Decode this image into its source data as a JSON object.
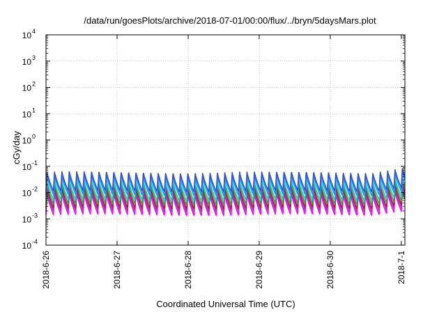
{
  "chart_data": {
    "type": "line",
    "title": "/data/run/goesPlots/archive/2018-07-01/00:00/flux/../bryn/5daysMars.plot",
    "xlabel": "Coordinated Universal Time (UTC)",
    "ylabel": "cGy/day",
    "yscale": "log",
    "ylim": [
      0.0001,
      10000
    ],
    "xlim_days": [
      0,
      5.05
    ],
    "x_tick_labels": [
      "2018-6-26",
      "2018-6-27",
      "2018-6-28",
      "2018-6-29",
      "2018-6-30",
      "2018-7-1"
    ],
    "y_ticks": [
      {
        "base": "10",
        "exp": "4"
      },
      {
        "base": "10",
        "exp": "3"
      },
      {
        "base": "10",
        "exp": "2"
      },
      {
        "base": "10",
        "exp": "1"
      },
      {
        "base": "10",
        "exp": "0"
      },
      {
        "base": "10",
        "exp": "-1"
      },
      {
        "base": "10",
        "exp": "-2"
      },
      {
        "base": "10",
        "exp": "-3"
      },
      {
        "base": "10",
        "exp": "-4"
      }
    ],
    "grid": true,
    "cycles_per_day": 9.6,
    "series": [
      {
        "color": "#2b4fd6",
        "peak": 0.06,
        "trough": 0.011
      },
      {
        "color": "#1f8fff",
        "peak": 0.045,
        "trough": 0.008
      },
      {
        "color": "#22d0c0",
        "peak": 0.03,
        "trough": 0.005
      },
      {
        "color": "#3a9a5a",
        "peak": 0.022,
        "trough": 0.0035
      },
      {
        "color": "#b02020",
        "peak": 0.016,
        "trough": 0.0025
      },
      {
        "color": "#9040b0",
        "peak": 0.012,
        "trough": 0.0019
      },
      {
        "color": "#ff00ff",
        "peak": 0.009,
        "trough": 0.0014
      }
    ]
  }
}
